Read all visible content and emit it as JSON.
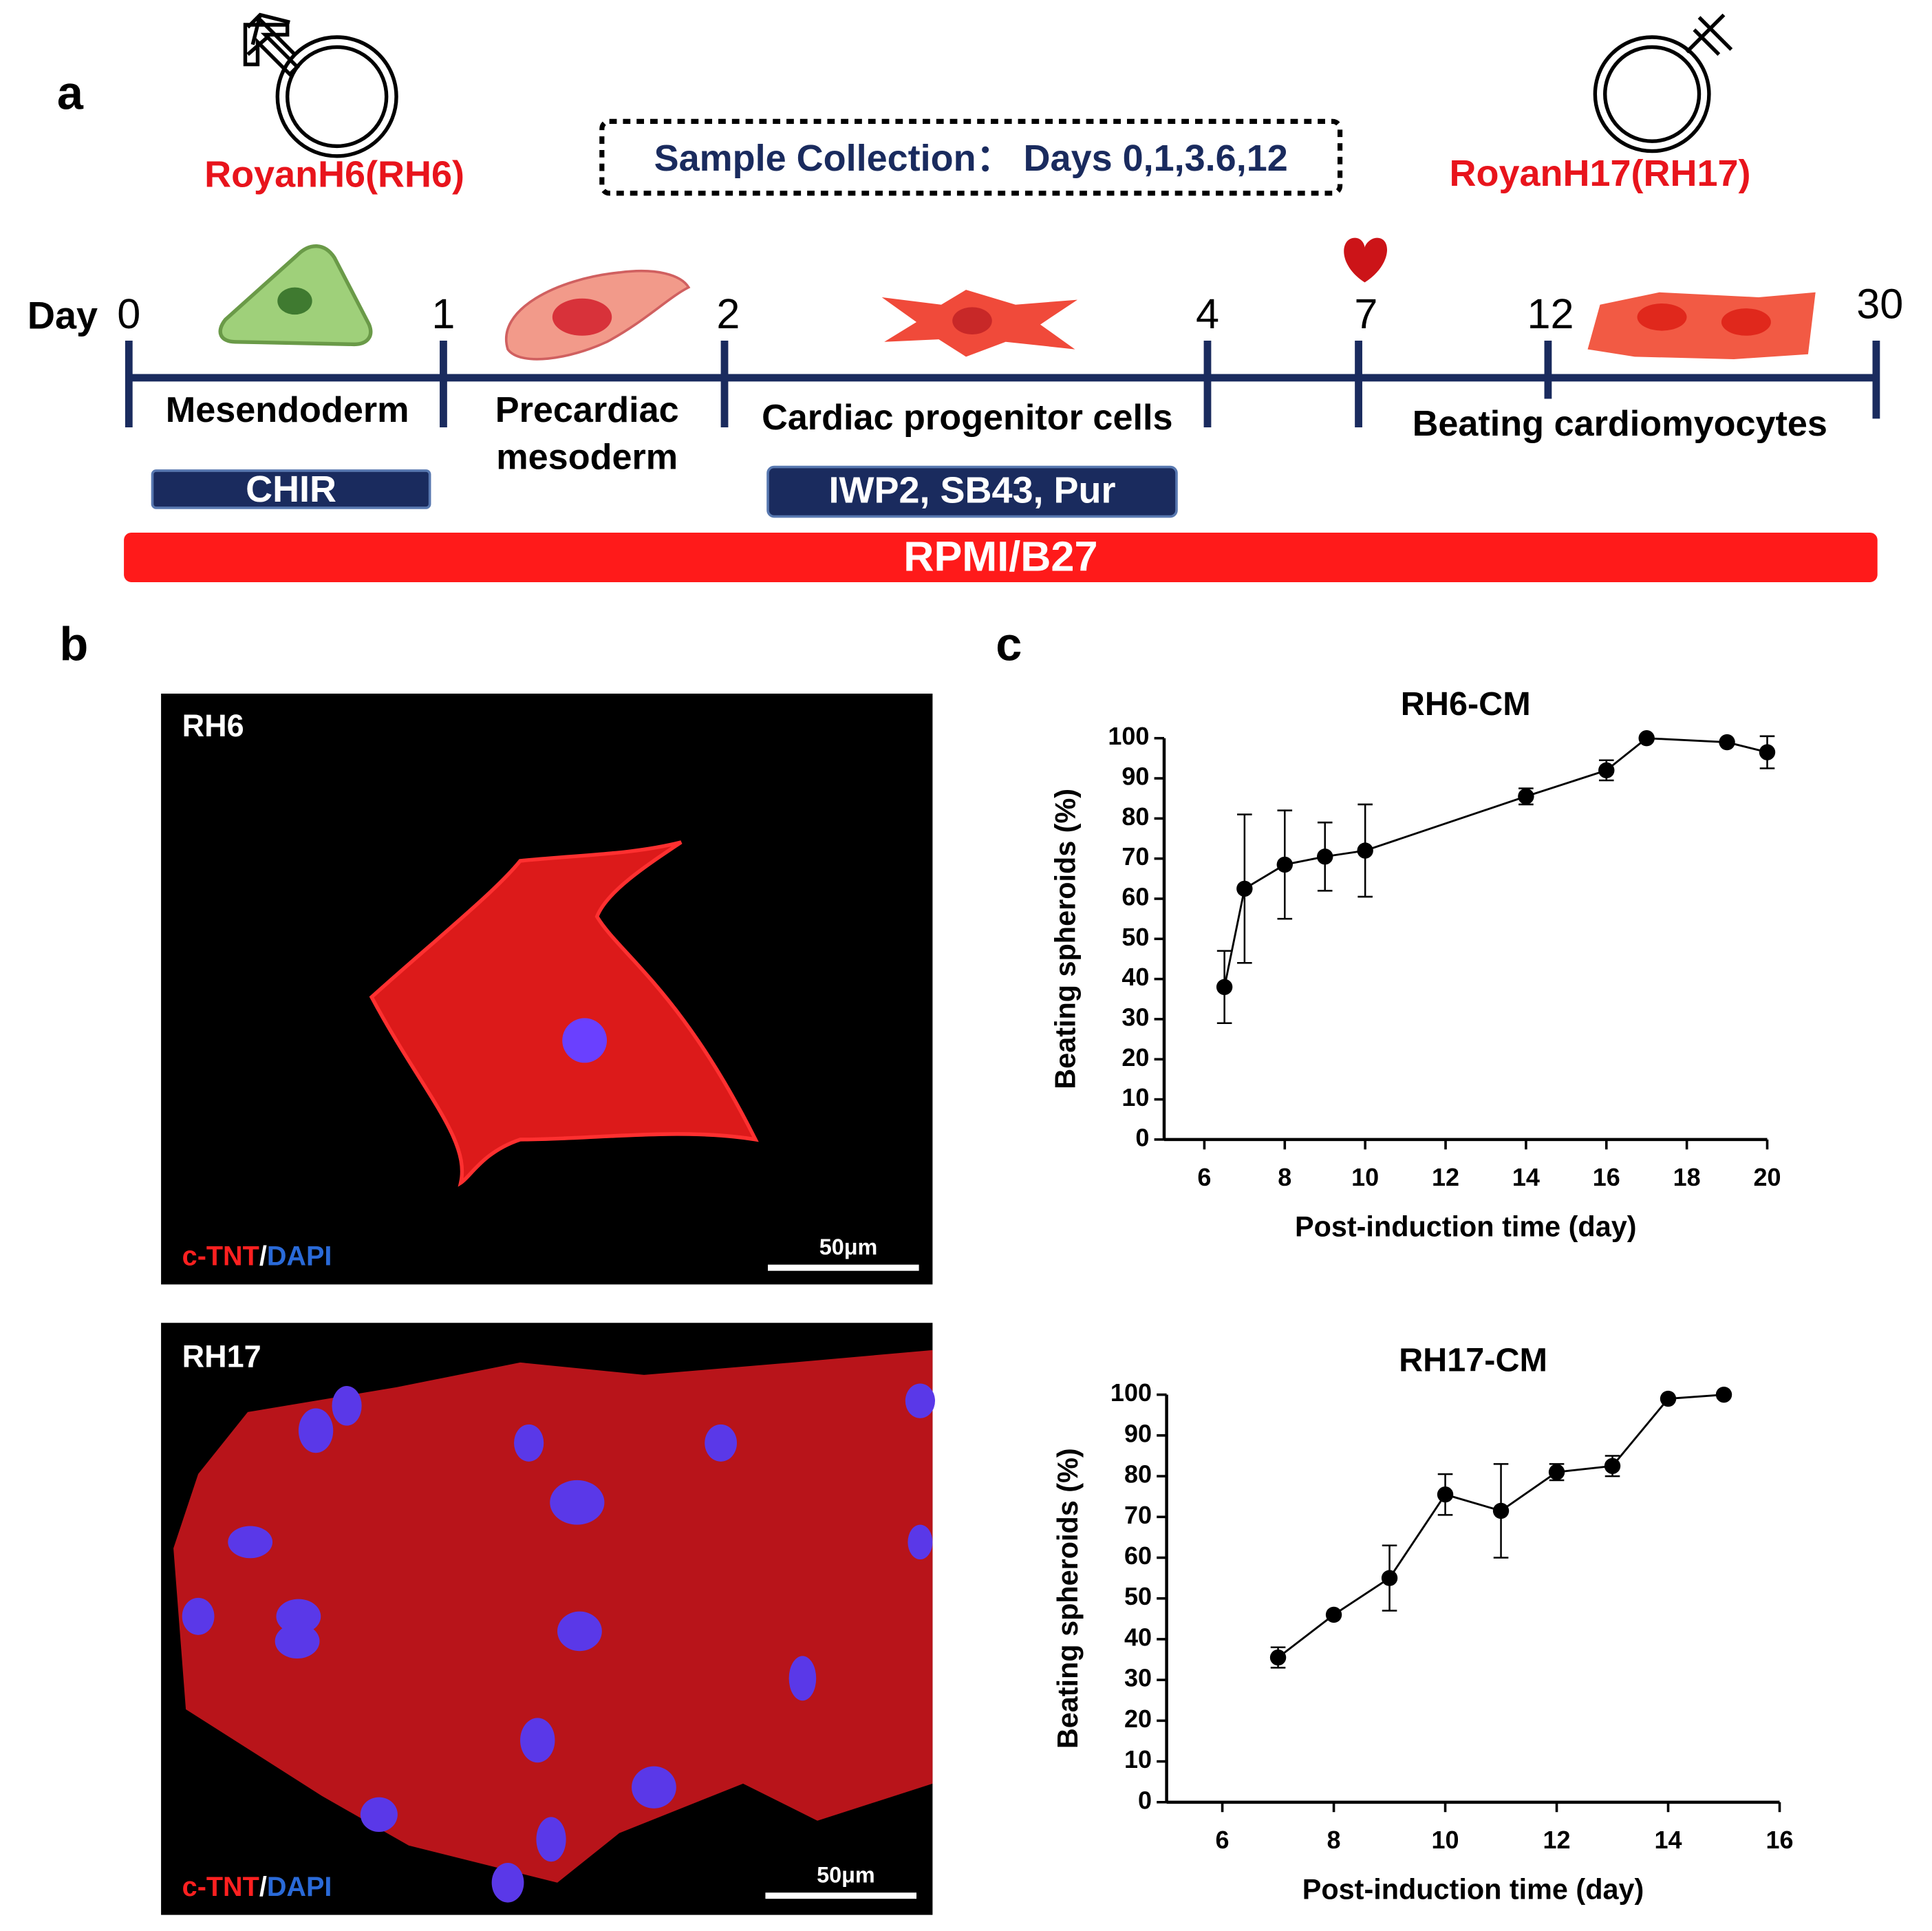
{
  "panel_a": {
    "label": "a",
    "left_cell_line": "RoyanH6(RH6)",
    "sample_collection": "Sample Collection： Days 0,1,3.6,12",
    "right_cell_line": "RoyanH17(RH17)",
    "day_label": "Day",
    "days": [
      "0",
      "1",
      "2",
      "4",
      "7",
      "12",
      "30"
    ],
    "stages": [
      "Mesendoderm",
      "Precardiac",
      "mesoderm",
      "Cardiac progenitor cells",
      "Beating cardiomyocytes"
    ],
    "treatments": [
      "CHIR",
      "IWP2, SB43, Pur"
    ],
    "medium": "RPMI/B27"
  },
  "panel_b": {
    "label": "b",
    "images": [
      {
        "name": "RH6",
        "stain_1": "c-TNT",
        "separator": "/",
        "stain_2": "DAPI",
        "scale_bar": "50μm"
      },
      {
        "name": "RH17",
        "stain_1": "c-TNT",
        "separator": "/",
        "stain_2": "DAPI",
        "scale_bar": "50μm"
      }
    ]
  },
  "panel_c": {
    "label": "c"
  },
  "chart_data": [
    {
      "type": "line",
      "title": "RH6-CM",
      "x_label": "Post-induction time (day)",
      "y_label": "Beating spheroids (%)",
      "color": "#000000",
      "x": [
        6.5,
        7,
        8,
        9,
        10,
        14,
        16,
        17,
        19,
        20
      ],
      "values": [
        38,
        62.5,
        68.5,
        70.5,
        72,
        85.5,
        92,
        100,
        99,
        96.5
      ],
      "errors": [
        9,
        18.5,
        13.5,
        8.5,
        11.5,
        2,
        2.5,
        0,
        0,
        4
      ],
      "xlim": [
        5,
        20
      ],
      "xticks": [
        6,
        8,
        10,
        12,
        14,
        16,
        18,
        20
      ],
      "ylim": [
        0,
        100
      ],
      "yticks": [
        0,
        10,
        20,
        30,
        40,
        50,
        60,
        70,
        80,
        90,
        100
      ]
    },
    {
      "type": "line",
      "title": "RH17-CM",
      "x_label": "Post-induction time (day)",
      "y_label": "Beating spheroids (%)",
      "color": "#000000",
      "x": [
        7,
        8,
        9,
        10,
        11,
        12,
        13,
        14,
        15
      ],
      "values": [
        35.5,
        46,
        55,
        75.5,
        71.5,
        81,
        82.5,
        99,
        100
      ],
      "errors": [
        2.5,
        0,
        8,
        5,
        11.5,
        2,
        2.5,
        0,
        0
      ],
      "xlim": [
        5,
        16
      ],
      "xticks": [
        6,
        8,
        10,
        12,
        14,
        16
      ],
      "ylim": [
        0,
        100
      ],
      "yticks": [
        0,
        10,
        20,
        30,
        40,
        50,
        60,
        70,
        80,
        90,
        100
      ]
    }
  ]
}
